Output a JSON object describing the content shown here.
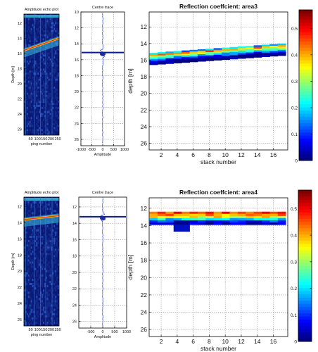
{
  "chart_data": [
    {
      "type": "heatmap",
      "title": "Amplitude echo plot",
      "xlabel": "ping number",
      "ylabel": "Depth [m]",
      "xlim": [
        0,
        260
      ],
      "ylim": [
        26.8,
        10.8
      ],
      "xticks": [
        50,
        100,
        150,
        200,
        250
      ],
      "yticks": [
        12,
        14,
        16,
        18,
        20,
        22,
        24,
        26
      ],
      "seabed_depth_start": 15.6,
      "seabed_depth_end": 14.0
    },
    {
      "type": "line",
      "title": "Centre trace",
      "xlabel": "Amplitude",
      "ylabel": "",
      "xlim": [
        -1000,
        1000
      ],
      "ylim": [
        26.8,
        10.0
      ],
      "xticks": [
        -1000,
        -500,
        0,
        500,
        1000
      ],
      "yticks": [
        10,
        12,
        14,
        16,
        18,
        20,
        22,
        24,
        26
      ],
      "peak_depth": 15.1
    },
    {
      "type": "heatmap",
      "title": "Reflection coeffcient: area3",
      "xlabel": "stack number",
      "ylabel": "depth [m]",
      "xlim": [
        0.5,
        17.8
      ],
      "ylim": [
        26.8,
        10.2
      ],
      "xticks": [
        2,
        4,
        6,
        8,
        10,
        12,
        14,
        16
      ],
      "yticks": [
        12,
        14,
        16,
        18,
        20,
        22,
        24,
        26
      ],
      "band_top_start": 15.1,
      "band_top_end": 14.0,
      "colorbar": {
        "ticks": [
          0,
          0.1,
          0.2,
          0.3,
          0.4,
          0.5
        ],
        "range": [
          0,
          0.57
        ]
      }
    },
    {
      "type": "heatmap",
      "title": "Amplitude echo plot",
      "xlabel": "ping number",
      "ylabel": "Depth [m]",
      "xlim": [
        0,
        260
      ],
      "ylim": [
        26.8,
        10.8
      ],
      "xticks": [
        50,
        100,
        150,
        200,
        250
      ],
      "yticks": [
        12,
        14,
        16,
        18,
        20,
        22,
        24,
        26
      ],
      "seabed_depth_start": 13.6,
      "seabed_depth_end": 13.1
    },
    {
      "type": "line",
      "title": "Centre trace",
      "xlabel": "Amplitude",
      "ylabel": "",
      "xlim": [
        -1000,
        1000
      ],
      "ylim": [
        26.8,
        10.8
      ],
      "xticks": [
        -500,
        0,
        500,
        1000
      ],
      "yticks": [
        12,
        14,
        16,
        18,
        20,
        22,
        24,
        26
      ],
      "peak_depth": 13.2
    },
    {
      "type": "heatmap",
      "title": "Reflection coeffcient: area4",
      "xlabel": "stack number",
      "ylabel": "depth [m]",
      "xlim": [
        0.5,
        17.8
      ],
      "ylim": [
        26.8,
        10.8
      ],
      "xticks": [
        2,
        4,
        6,
        8,
        10,
        12,
        14,
        16
      ],
      "yticks": [
        12,
        14,
        16,
        18,
        20,
        22,
        24,
        26
      ],
      "band_top_start": 12.4,
      "band_top_end": 12.4,
      "colorbar": {
        "ticks": [
          0,
          0.1,
          0.2,
          0.3,
          0.4,
          0.5
        ],
        "range": [
          0,
          0.57
        ]
      }
    }
  ]
}
